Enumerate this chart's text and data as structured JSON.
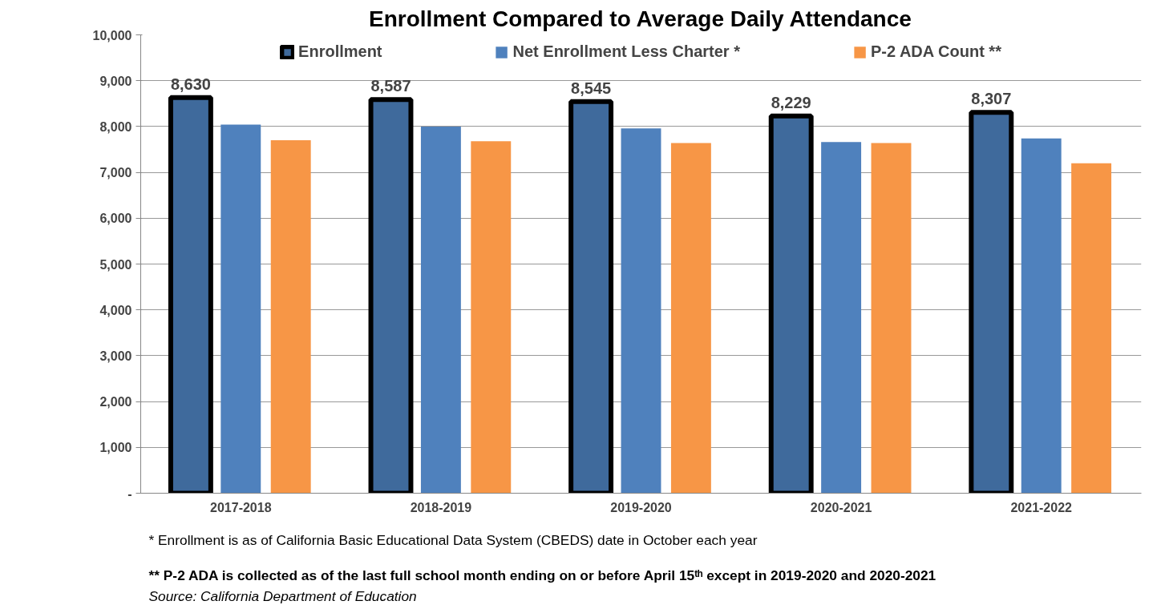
{
  "chart_data": {
    "type": "bar",
    "title": "Enrollment Compared to Average Daily Attendance",
    "categories": [
      "2017-2018",
      "2018-2019",
      "2019-2020",
      "2020-2021",
      "2021-2022"
    ],
    "series": [
      {
        "name": "Enrollment",
        "color": "#3f6a9c",
        "values": [
          8630,
          8587,
          8545,
          8229,
          8307
        ],
        "value_labels": [
          "8,630",
          "8,587",
          "8,545",
          "8,229",
          "8,307"
        ]
      },
      {
        "name": "Net Enrollment Less Charter *",
        "color": "#4f81bd",
        "values": [
          8040,
          8000,
          7960,
          7660,
          7740
        ]
      },
      {
        "name": "P-2 ADA Count **",
        "color": "#f79646",
        "values": [
          7700,
          7680,
          7640,
          7640,
          7200
        ]
      }
    ],
    "ylim": [
      0,
      10000
    ],
    "yticks": [
      {
        "value": 0,
        "label": "-"
      },
      {
        "value": 1000,
        "label": "1,000"
      },
      {
        "value": 2000,
        "label": "2,000"
      },
      {
        "value": 3000,
        "label": "3,000"
      },
      {
        "value": 4000,
        "label": "4,000"
      },
      {
        "value": 5000,
        "label": "5,000"
      },
      {
        "value": 6000,
        "label": "6,000"
      },
      {
        "value": 7000,
        "label": "7,000"
      },
      {
        "value": 8000,
        "label": "8,000"
      },
      {
        "value": 9000,
        "label": "9,000"
      },
      {
        "value": 10000,
        "label": "10,000"
      }
    ],
    "grid": "y",
    "legend": "top",
    "annotations": [
      "*  Enrollment is as of California Basic Educational Data System (CBEDS) date in October each year",
      "** P-2 ADA is collected as of the last full school month ending on or before April 15ᵗʰ except in 2019-2020 and 2020-2021",
      "Source: California Department of Education"
    ]
  }
}
